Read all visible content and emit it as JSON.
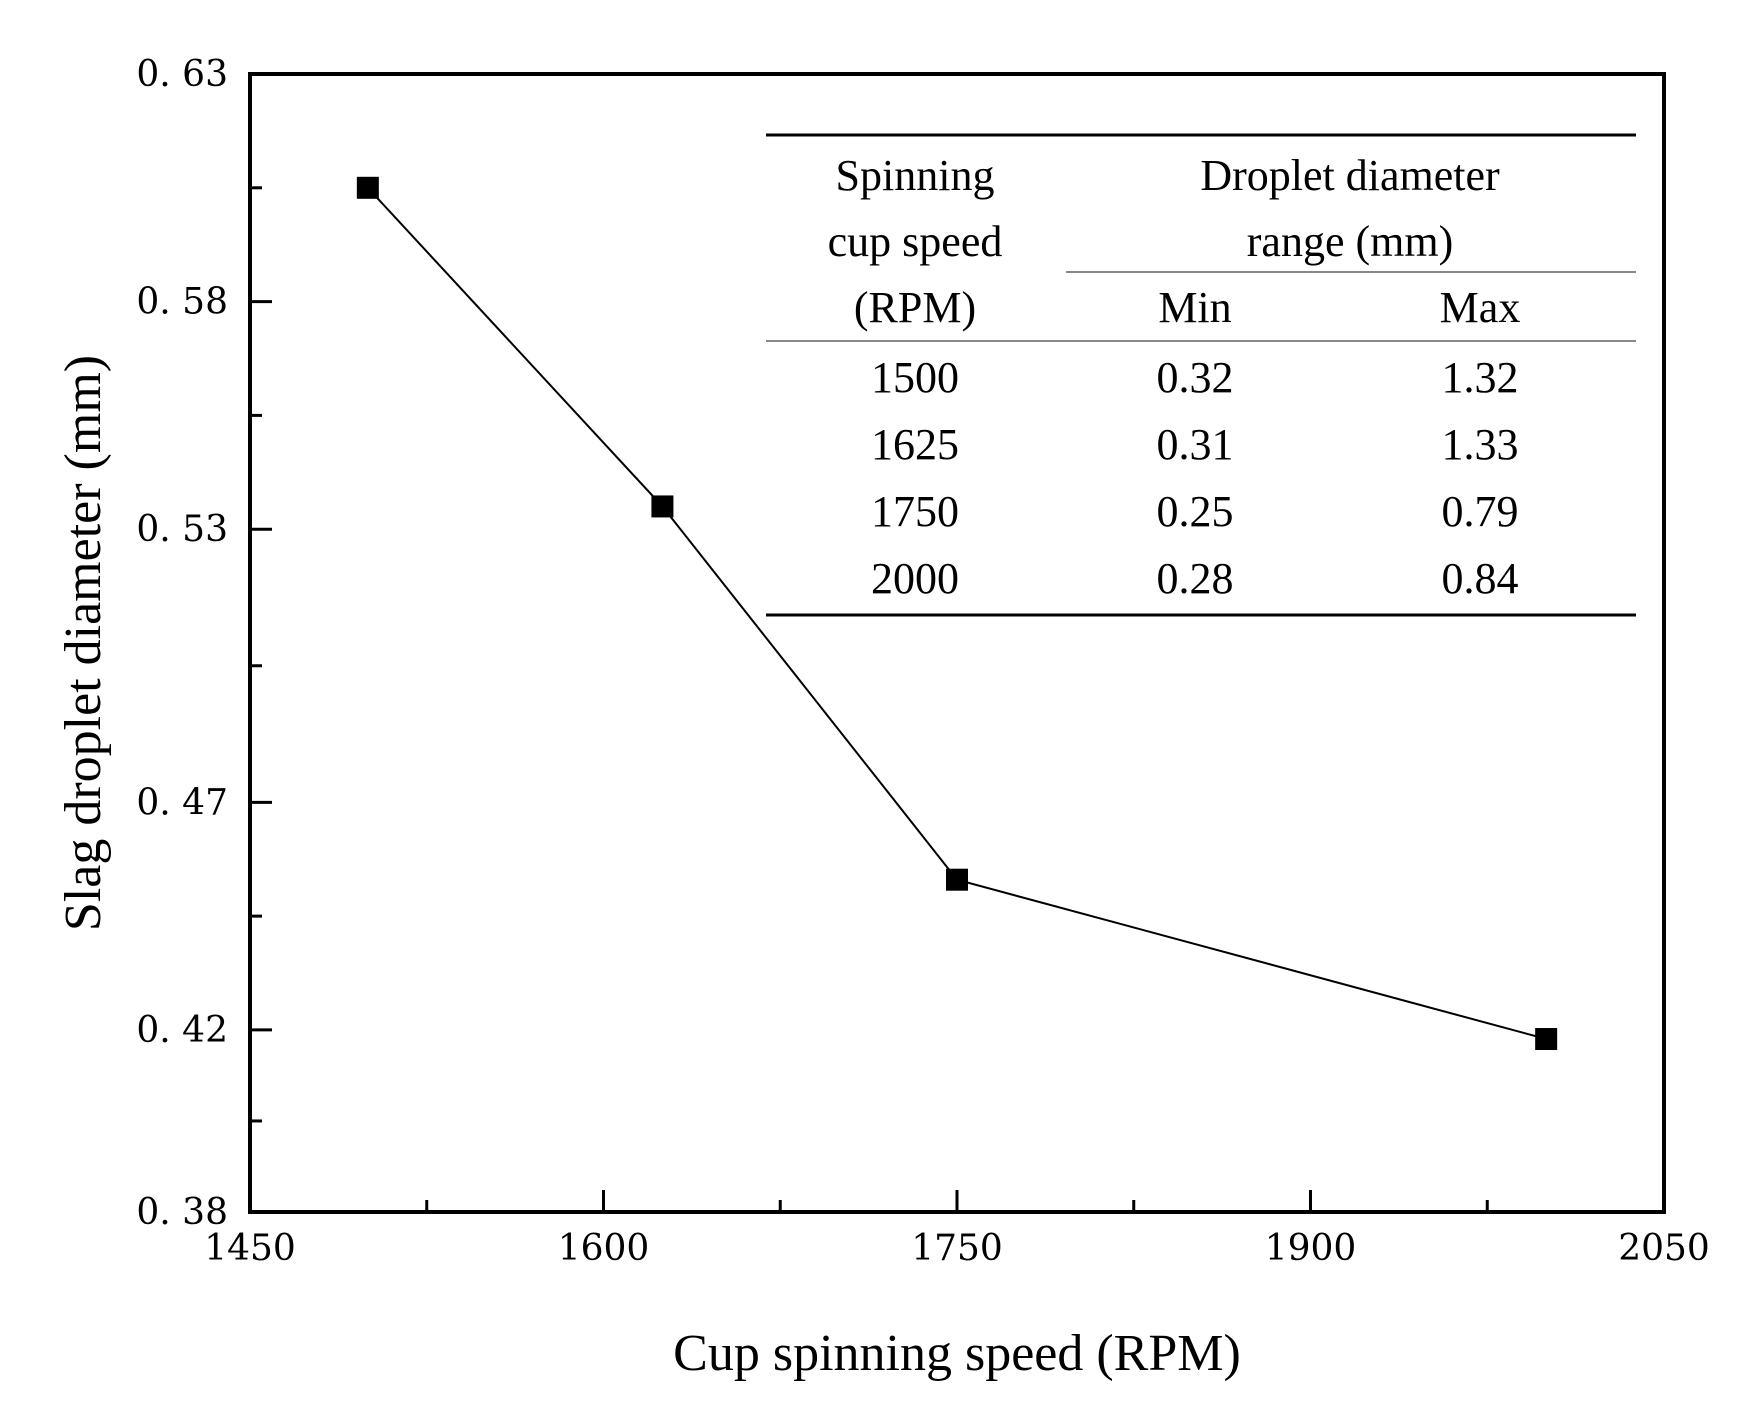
{
  "chart_data": {
    "type": "line",
    "title": "",
    "xlabel": "Cup spinning speed (RPM)",
    "ylabel": "Slag droplet diameter (mm)",
    "xlim": [
      1450,
      2050
    ],
    "ylim": [
      0.38,
      0.63
    ],
    "x_ticks": [
      1450,
      1600,
      1750,
      1900,
      2050
    ],
    "y_ticks": [
      0.38,
      0.42,
      0.47,
      0.53,
      0.58,
      0.63
    ],
    "y_tick_labels": [
      "0. 38",
      "0. 42",
      "0. 47",
      "0. 53",
      "0. 58",
      "0. 63"
    ],
    "grid": false,
    "series": [
      {
        "name": "Slag droplet diameter",
        "marker": "square",
        "color": "#000000",
        "x": [
          1500,
          1625,
          1750,
          2000
        ],
        "y": [
          0.605,
          0.535,
          0.453,
          0.418
        ]
      }
    ],
    "inset_table": {
      "header_speed": [
        "Spinning",
        "cup speed",
        "(RPM)"
      ],
      "header_range": [
        "Droplet diameter",
        "range (mm)"
      ],
      "sub_headers": [
        "Min",
        "Max"
      ],
      "rows": [
        [
          "1500",
          "0.32",
          "1.32"
        ],
        [
          "1625",
          "0.31",
          "1.33"
        ],
        [
          "1750",
          "0.25",
          "0.79"
        ],
        [
          "2000",
          "0.28",
          "0.84"
        ]
      ]
    }
  }
}
